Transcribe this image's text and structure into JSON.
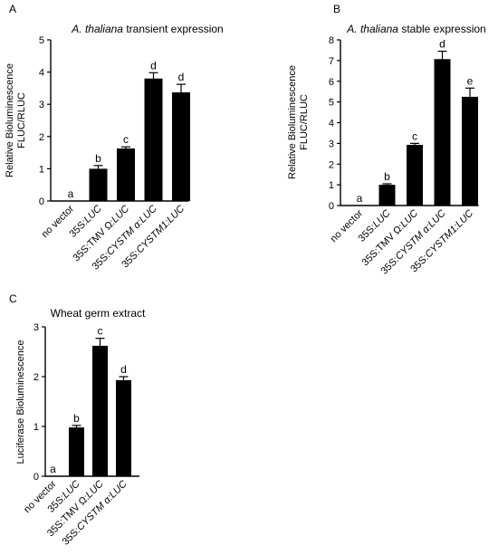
{
  "chart_data": [
    {
      "panel": "A",
      "type": "bar",
      "title_italic": "A. thaliana",
      "title_rest": " transient expression",
      "ylabel_lines": [
        "Relative Bioluminescence",
        "FLUC/RLUC"
      ],
      "ylim": [
        0,
        5
      ],
      "yticks": [
        "0",
        "1",
        "2",
        "3",
        "4",
        "5"
      ],
      "categories": [
        {
          "prefix": "no vector",
          "italic": ""
        },
        {
          "prefix": "35S:",
          "italic": "LUC"
        },
        {
          "prefix": "35S:TMV Ω:",
          "italic": "LUC"
        },
        {
          "prefix": "35S:",
          "italic": "CYSTM α:LUC"
        },
        {
          "prefix": "35S:",
          "italic": "CYSTM1:LUC"
        }
      ],
      "values": [
        0,
        1.0,
        1.63,
        3.8,
        3.37
      ],
      "errors": [
        0,
        0.1,
        0.05,
        0.18,
        0.25
      ],
      "significance": [
        "a",
        "b",
        "c",
        "d",
        "d"
      ]
    },
    {
      "panel": "B",
      "type": "bar",
      "title_italic": "A. thaliana",
      "title_rest": " stable expression",
      "ylabel_lines": [
        "Relative Bioluminescence",
        "FLUC/RLUC"
      ],
      "ylim": [
        0,
        8
      ],
      "yticks": [
        "0",
        "1",
        "2",
        "3",
        "4",
        "5",
        "6",
        "7",
        "8"
      ],
      "categories": [
        {
          "prefix": "no vector",
          "italic": ""
        },
        {
          "prefix": "35S:",
          "italic": "LUC"
        },
        {
          "prefix": "35S:TMV Ω:",
          "italic": "LUC"
        },
        {
          "prefix": "35S:",
          "italic": "CYSTM α:LUC"
        },
        {
          "prefix": "35S:",
          "italic": "CYSTM1:LUC"
        }
      ],
      "values": [
        0,
        1.0,
        2.93,
        7.07,
        5.25
      ],
      "errors": [
        0,
        0.05,
        0.07,
        0.38,
        0.42
      ],
      "significance": [
        "a",
        "b",
        "c",
        "d",
        "e"
      ]
    },
    {
      "panel": "C",
      "type": "bar",
      "title_italic": "",
      "title_rest": "Wheat germ extract",
      "ylabel_lines": [
        "Luciferase Bioluminescence"
      ],
      "ylim": [
        0,
        3
      ],
      "yticks": [
        "0",
        "1",
        "2",
        "3"
      ],
      "categories": [
        {
          "prefix": "no vector",
          "italic": ""
        },
        {
          "prefix": "35S:",
          "italic": "LUC"
        },
        {
          "prefix": "35S:TMV Ω:",
          "italic": "LUC"
        },
        {
          "prefix": "35S:",
          "italic": "CYSTM α:LUC"
        }
      ],
      "values": [
        0,
        0.98,
        2.62,
        1.93
      ],
      "errors": [
        0,
        0.04,
        0.15,
        0.07
      ],
      "significance": [
        "a",
        "b",
        "c",
        "d"
      ]
    }
  ]
}
